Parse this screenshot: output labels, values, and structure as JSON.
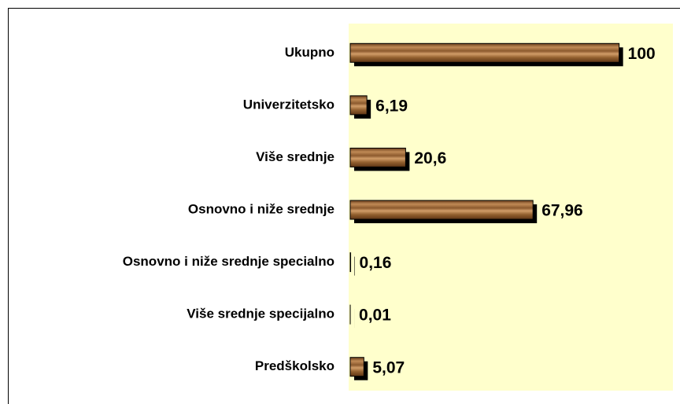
{
  "chart_data": {
    "type": "barh",
    "categories": [
      "Ukupno",
      "Univerzitetsko",
      "Više srednje",
      "Osnovno i niže srednje",
      "Osnovno i niže srednje specialno",
      "Više srednje specijalno",
      "Predškolsko"
    ],
    "values": [
      100,
      6.19,
      20.6,
      67.96,
      0.16,
      0.01,
      5.07
    ],
    "value_labels": [
      "100",
      "6,19",
      "20,6",
      "67,96",
      "0,16",
      "0,01",
      "5,07"
    ],
    "xlim": [
      0,
      120
    ],
    "color": "#a0672f",
    "background": "#ffffcc"
  }
}
